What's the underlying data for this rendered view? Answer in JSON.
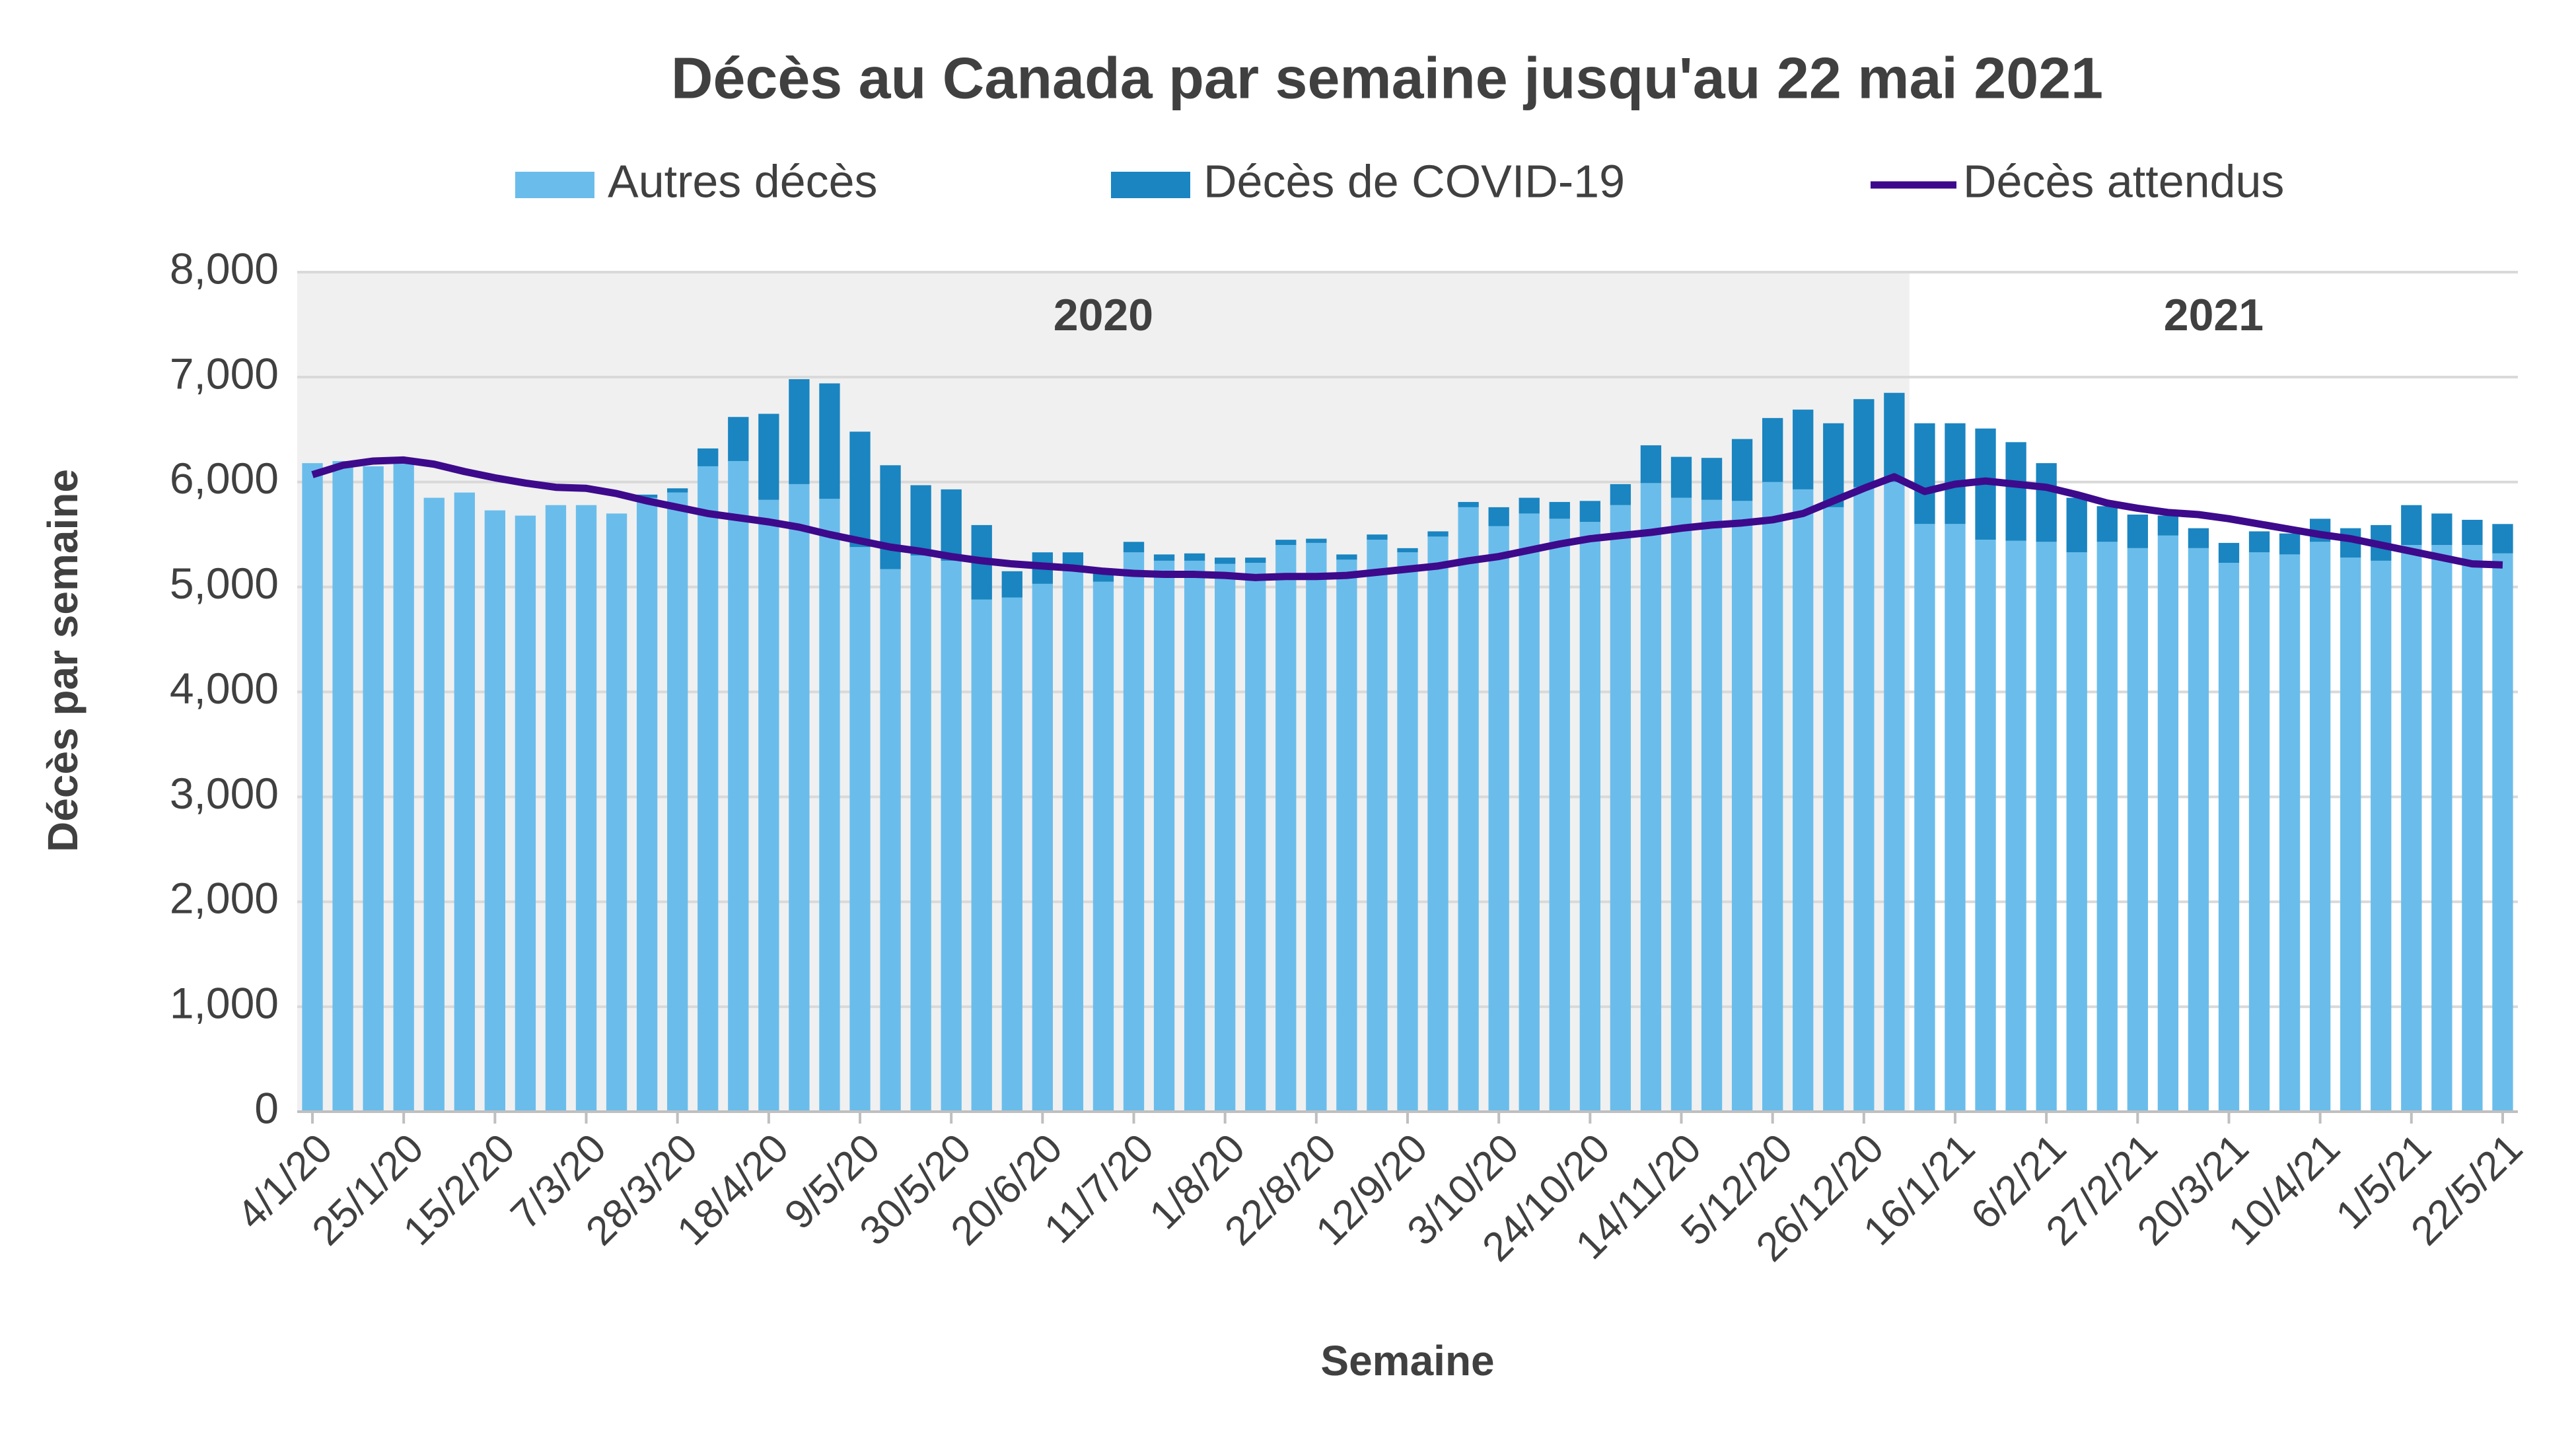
{
  "chart_data": {
    "type": "stacked_bar_line",
    "title": "Décès au Canada par semaine jusqu'au 22 mai 2021",
    "x_label": "Semaine",
    "y_label": "Décès par semaine",
    "categories": [
      "4/1/20",
      null,
      null,
      "25/1/20",
      null,
      null,
      "15/2/20",
      null,
      null,
      "7/3/20",
      null,
      null,
      "28/3/20",
      null,
      null,
      "18/4/20",
      null,
      null,
      "9/5/20",
      null,
      null,
      "30/5/20",
      null,
      null,
      "20/6/20",
      null,
      null,
      "11/7/20",
      null,
      null,
      "1/8/20",
      null,
      null,
      "22/8/20",
      null,
      null,
      "12/9/20",
      null,
      null,
      "3/10/20",
      null,
      null,
      "24/10/20",
      null,
      null,
      "14/11/20",
      null,
      null,
      "5/12/20",
      null,
      null,
      "26/12/20",
      null,
      null,
      "16/1/21",
      null,
      null,
      "6/2/21",
      null,
      null,
      "27/2/21",
      null,
      null,
      "20/3/21",
      null,
      null,
      "10/4/21",
      null,
      null,
      "1/5/21",
      null,
      null,
      "22/5/21"
    ],
    "series": [
      {
        "name": "Autres décès",
        "color": "#6abdeb",
        "kind": "bar",
        "values": [
          6180,
          6200,
          6150,
          6180,
          5850,
          5900,
          5730,
          5680,
          5780,
          5780,
          5700,
          5850,
          5900,
          6150,
          6200,
          5830,
          5980,
          5840,
          5380,
          5170,
          5300,
          5250,
          4880,
          4900,
          5030,
          5150,
          5050,
          5330,
          5250,
          5250,
          5220,
          5230,
          5400,
          5420,
          5260,
          5450,
          5330,
          5480,
          5760,
          5580,
          5700,
          5650,
          5620,
          5780,
          5990,
          5850,
          5830,
          5820,
          6000,
          5930,
          5760,
          5950,
          6000,
          5600,
          5600,
          5450,
          5440,
          5430,
          5330,
          5430,
          5370,
          5490,
          5370,
          5230,
          5330,
          5310,
          5430,
          5280,
          5250,
          5400,
          5400,
          5400,
          5320
        ]
      },
      {
        "name": "Décès de COVID-19",
        "color": "#1a85c1",
        "kind": "bar",
        "values": [
          0,
          0,
          0,
          0,
          0,
          0,
          0,
          0,
          0,
          0,
          0,
          30,
          40,
          170,
          420,
          820,
          1000,
          1100,
          1100,
          990,
          670,
          680,
          710,
          250,
          300,
          180,
          100,
          100,
          60,
          70,
          60,
          50,
          50,
          40,
          50,
          50,
          40,
          50,
          50,
          180,
          150,
          160,
          200,
          200,
          360,
          390,
          400,
          590,
          610,
          760,
          800,
          840,
          850,
          960,
          960,
          1060,
          940,
          750,
          520,
          340,
          320,
          190,
          190,
          190,
          200,
          200,
          220,
          280,
          340,
          380,
          300,
          240,
          280
        ]
      },
      {
        "name": "Décès attendus",
        "color": "#3d0a8c",
        "kind": "line",
        "values": [
          6070,
          6160,
          6200,
          6210,
          6170,
          6100,
          6040,
          5990,
          5950,
          5940,
          5890,
          5820,
          5760,
          5700,
          5660,
          5620,
          5570,
          5500,
          5440,
          5380,
          5340,
          5290,
          5250,
          5220,
          5200,
          5180,
          5150,
          5130,
          5120,
          5120,
          5110,
          5090,
          5100,
          5100,
          5110,
          5140,
          5170,
          5200,
          5250,
          5290,
          5350,
          5410,
          5460,
          5490,
          5520,
          5560,
          5590,
          5610,
          5640,
          5700,
          5820,
          5940,
          6050,
          5910,
          5980,
          6010,
          5980,
          5950,
          5880,
          5800,
          5750,
          5710,
          5690,
          5650,
          5600,
          5550,
          5500,
          5460,
          5400,
          5340,
          5280,
          5220,
          5210
        ]
      }
    ],
    "year_bands": [
      {
        "label": "2020",
        "start": 0,
        "end": 52,
        "color": "#f0f0f0"
      },
      {
        "label": "2021",
        "start": 53,
        "end": 72,
        "color": "#ffffff"
      }
    ],
    "ylim": [
      0,
      8000
    ],
    "yticks": [
      0,
      {
        "value": 1000,
        "label": "1,000"
      },
      {
        "value": 2000,
        "label": "2,000"
      },
      {
        "value": 3000,
        "label": "3,000"
      },
      {
        "value": 4000,
        "label": "4,000"
      },
      {
        "value": 5000,
        "label": "5,000"
      },
      {
        "value": 6000,
        "label": "6,000"
      },
      {
        "value": 7000,
        "label": "7,000"
      },
      {
        "value": 8000,
        "label": "8,000"
      }
    ],
    "grid": true
  }
}
